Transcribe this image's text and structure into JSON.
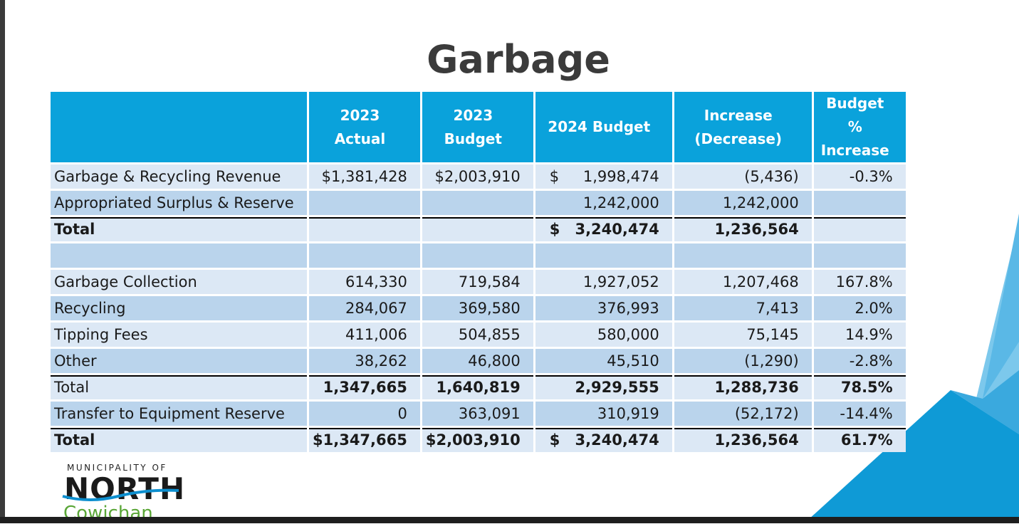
{
  "title": "Garbage",
  "table": {
    "headers": [
      "",
      "2023 Actual",
      "2023 Budget",
      "2024 Budget",
      "Increase\n(Decrease)",
      "Budget %\nIncrease"
    ],
    "rows": [
      {
        "label": "Garbage & Recycling Revenue",
        "a2023": "$1,381,428",
        "b2023": "$2,003,910",
        "cur": "$",
        "b2024": "1,998,474",
        "inc": "(5,436)",
        "pct": "-0.3%"
      },
      {
        "label": "Appropriated Surplus & Reserve",
        "a2023": "",
        "b2023": "",
        "cur": "",
        "b2024": "1,242,000",
        "inc": "1,242,000",
        "pct": ""
      },
      {
        "label": "Total",
        "a2023": "",
        "b2023": "",
        "cur": "$",
        "b2024": "3,240,474",
        "inc": "1,236,564",
        "pct": ""
      },
      {
        "label": "",
        "a2023": "",
        "b2023": "",
        "cur": "",
        "b2024": "",
        "inc": "",
        "pct": ""
      },
      {
        "label": "Garbage Collection",
        "a2023": "614,330",
        "b2023": "719,584",
        "cur": "",
        "b2024": "1,927,052",
        "inc": "1,207,468",
        "pct": "167.8%"
      },
      {
        "label": "Recycling",
        "a2023": "284,067",
        "b2023": "369,580",
        "cur": "",
        "b2024": "376,993",
        "inc": "7,413",
        "pct": "2.0%"
      },
      {
        "label": "Tipping Fees",
        "a2023": "411,006",
        "b2023": "504,855",
        "cur": "",
        "b2024": "580,000",
        "inc": "75,145",
        "pct": "14.9%"
      },
      {
        "label": "Other",
        "a2023": "38,262",
        "b2023": "46,800",
        "cur": "",
        "b2024": "45,510",
        "inc": "(1,290)",
        "pct": "-2.8%"
      },
      {
        "label": "Total",
        "a2023": "1,347,665",
        "b2023": "1,640,819",
        "cur": "",
        "b2024": "2,929,555",
        "inc": "1,288,736",
        "pct": "78.5%"
      },
      {
        "label": "Transfer to Equipment Reserve",
        "a2023": "0",
        "b2023": "363,091",
        "cur": "",
        "b2024": "310,919",
        "inc": "(52,172)",
        "pct": "-14.4%"
      },
      {
        "label": "Total",
        "a2023": "$1,347,665",
        "b2023": "$2,003,910",
        "cur": "$",
        "b2024": "3,240,474",
        "inc": "1,236,564",
        "pct": "61.7%"
      }
    ]
  },
  "logo": {
    "line1": "MUNICIPALITY OF",
    "line2": "NORTH",
    "line3": "Cowichan"
  },
  "colors": {
    "header": "#0aa2db",
    "row_light": "#dce8f5",
    "row_mid": "#bad4ec",
    "accent_light": "#7cc8ec",
    "accent_dark": "#0d8fcf"
  }
}
